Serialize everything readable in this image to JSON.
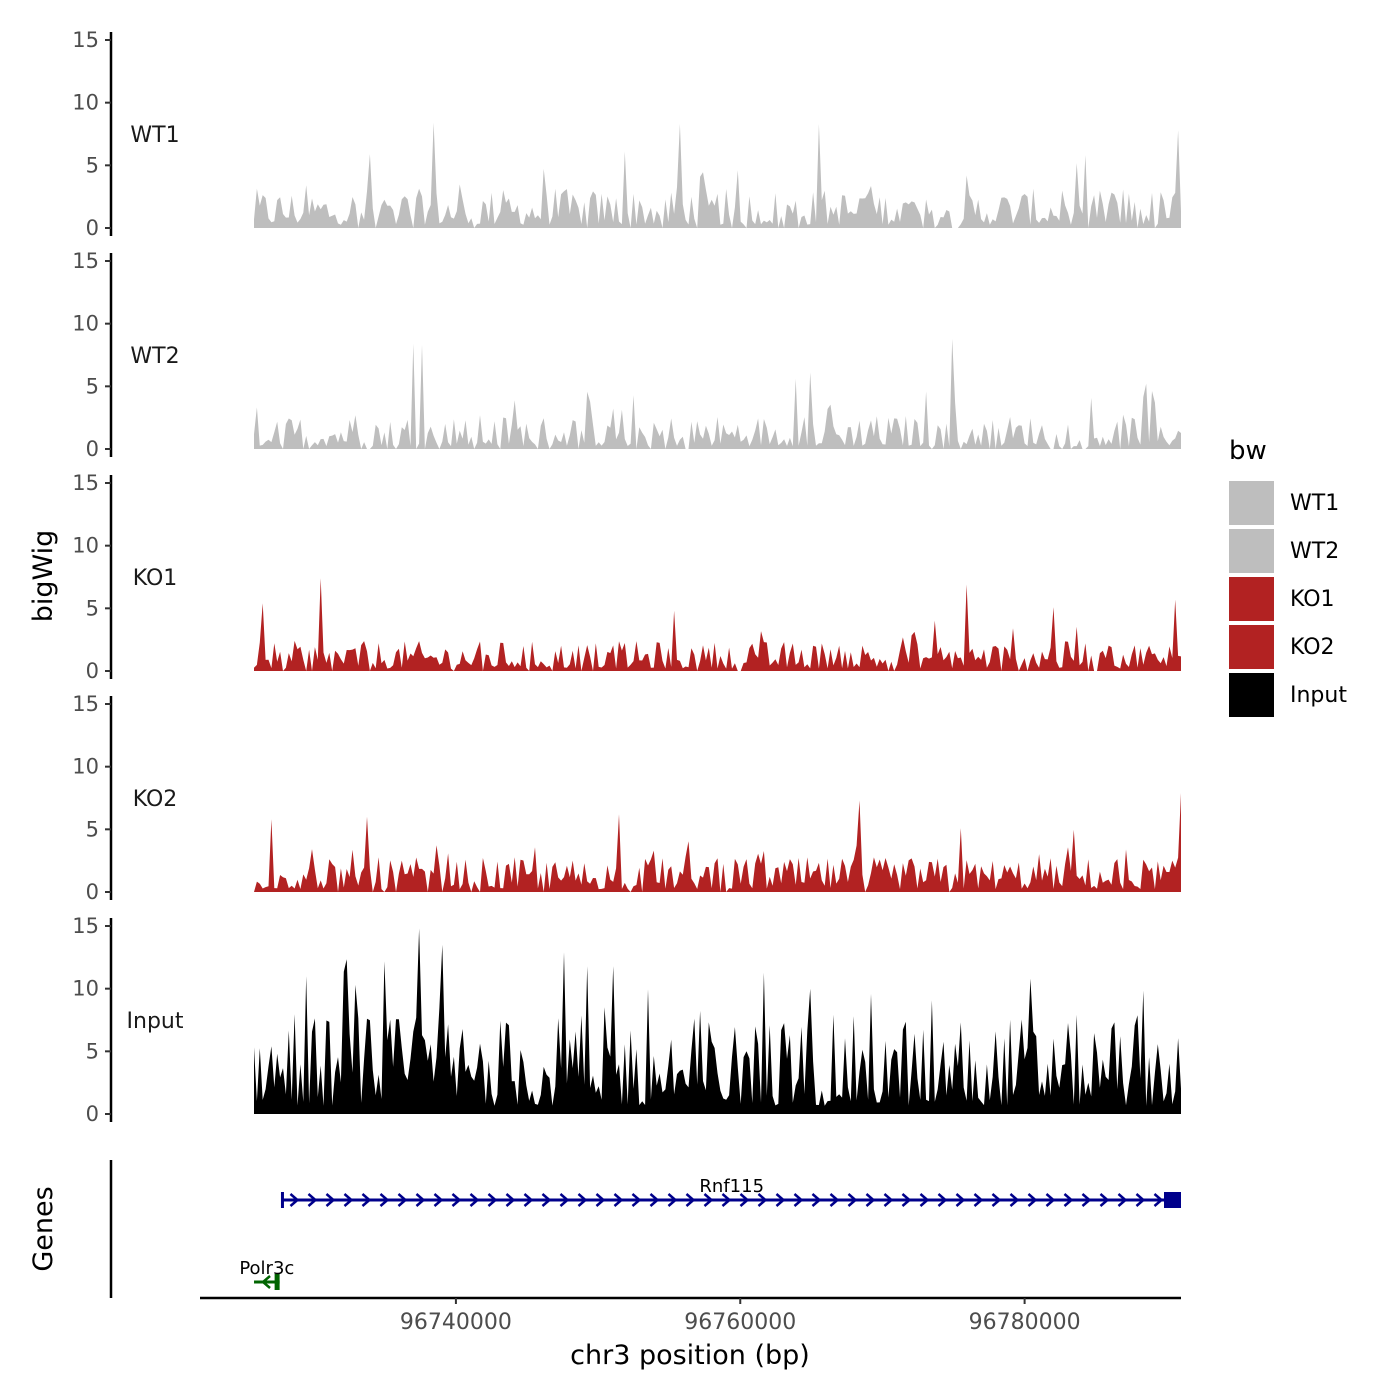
{
  "chart_data": {
    "type": "area",
    "y_axis_title": "bigWig",
    "genes_axis_title": "Genes",
    "x_axis_title": "chr3 position (bp)",
    "x_range": [
      96722000,
      96791000
    ],
    "x_ticks": [
      96740000,
      96760000,
      96780000
    ],
    "x_tick_labels": [
      "96740000",
      "96760000",
      "96780000"
    ],
    "y_range": [
      0,
      15
    ],
    "y_ticks": [
      0,
      5,
      10,
      15
    ],
    "y_tick_labels": [
      "0",
      "5",
      "10",
      "15"
    ],
    "track_start": 96725800,
    "track_end": 96791000,
    "bin_count": 320,
    "series": [
      {
        "name": "WT1",
        "color": "#bebebe",
        "mean": 1.7,
        "peaks": [
          [
            96738400,
            8.4
          ],
          [
            96755800,
            8.3
          ],
          [
            96765600,
            8.3
          ],
          [
            96790800,
            7.8
          ],
          [
            96751800,
            6.1
          ],
          [
            96734000,
            5.9
          ]
        ]
      },
      {
        "name": "WT2",
        "color": "#bebebe",
        "mean": 1.5,
        "peaks": [
          [
            96737000,
            8.4
          ],
          [
            96737700,
            8.3
          ],
          [
            96775000,
            8.8
          ],
          [
            96765000,
            6.1
          ],
          [
            96764000,
            5.6
          ],
          [
            96788500,
            5.2
          ]
        ]
      },
      {
        "name": "KO1",
        "color": "#b22222",
        "mean": 1.3,
        "peaks": [
          [
            96730400,
            7.4
          ],
          [
            96775900,
            6.9
          ],
          [
            96790600,
            5.7
          ],
          [
            96726500,
            5.4
          ],
          [
            96782000,
            5.1
          ],
          [
            96755400,
            4.8
          ]
        ]
      },
      {
        "name": "KO2",
        "color": "#b22222",
        "mean": 1.5,
        "peaks": [
          [
            96768400,
            7.3
          ],
          [
            96791000,
            7.9
          ],
          [
            96751400,
            6.2
          ],
          [
            96727100,
            5.8
          ],
          [
            96775600,
            5.1
          ],
          [
            96733800,
            6.0
          ]
        ]
      },
      {
        "name": "Input",
        "color": "#000000",
        "mean": 4.3,
        "peaks": [
          [
            96737500,
            14.8
          ],
          [
            96739000,
            13.5
          ],
          [
            96747700,
            12.9
          ],
          [
            96751100,
            11.8
          ],
          [
            96780500,
            10.8
          ],
          [
            96729500,
            11.0
          ],
          [
            96733000,
            10.3
          ],
          [
            96765000,
            10.0
          ]
        ]
      }
    ],
    "genes": [
      {
        "name": "Rnf115",
        "start": 96727800,
        "end": 96791000,
        "strand": "+",
        "color": "#00008b"
      },
      {
        "name": "Polr3c",
        "start": 96725800,
        "end": 96727600,
        "strand": "-",
        "color": "#006400"
      }
    ],
    "legend": {
      "title": "bw",
      "position": "right",
      "entries": [
        {
          "label": "WT1",
          "color": "#bebebe"
        },
        {
          "label": "WT2",
          "color": "#bebebe"
        },
        {
          "label": "KO1",
          "color": "#b22222"
        },
        {
          "label": "KO2",
          "color": "#b22222"
        },
        {
          "label": "Input",
          "color": "#000000"
        }
      ]
    }
  }
}
